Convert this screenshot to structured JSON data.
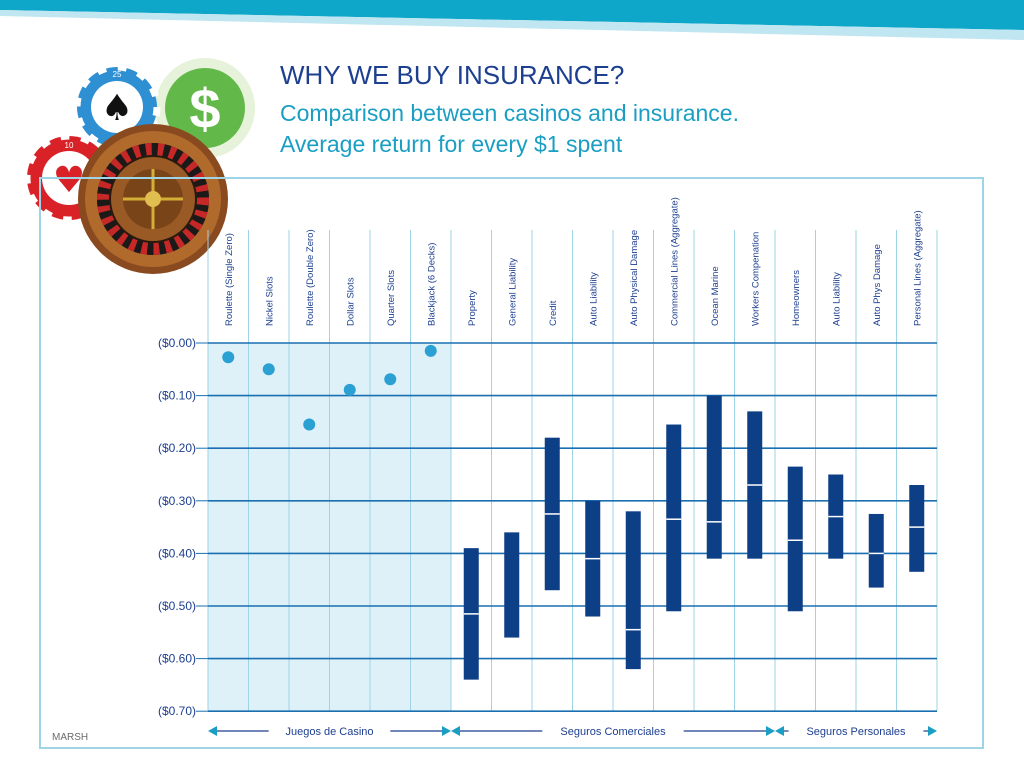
{
  "header": {
    "title": "WHY WE BUY INSURANCE?",
    "subtitle_line1": "Comparison between casinos and insurance.",
    "subtitle_line2": "Average return for every $1 spent"
  },
  "footer": {
    "brand": "MARSH"
  },
  "colors": {
    "accent": "#1a9ec3",
    "title": "#1d3f8f",
    "bar": "#0d3f86",
    "dot": "#2ba0d2",
    "grid": "#1a6fb0",
    "casino_shade": "#dff1f8",
    "frame": "#9fd3e6"
  },
  "decor": {
    "dollar": "$",
    "chip_blue_value": "25",
    "chip_red_value": "10"
  },
  "chart_data": {
    "type": "scatter",
    "title": "",
    "xlabel": "",
    "ylabel": "",
    "y_tick_labels": [
      "($0.00)",
      "($0.10)",
      "($0.20)",
      "($0.30)",
      "($0.40)",
      "($0.50)",
      "($0.60)",
      "($0.70)"
    ],
    "y_ticks": [
      0,
      -0.1,
      -0.2,
      -0.3,
      -0.4,
      -0.5,
      -0.6,
      -0.7
    ],
    "ylim": [
      -0.7,
      0
    ],
    "grid": true,
    "categories": [
      "Roulette (Single Zero)",
      "Nickel Slots",
      "Roulette (Double Zero)",
      "Dollar Slots",
      "Quarter Slots",
      "Blackjack (6 Decks)",
      "Property",
      "General Liability",
      "Credit",
      "Auto Liability",
      "Auto Physical Damage",
      "Commercial Lines (Aggregate)",
      "Ocean Marine",
      "Workers Compenation",
      "Homeowners",
      "Auto Liability",
      "Auto Phys Damage",
      "Personal Lines (Aggregate)"
    ],
    "casino_points": [
      -0.027,
      -0.05,
      -0.155,
      -0.089,
      -0.069,
      -0.015
    ],
    "insurance_ranges": [
      {
        "low": -0.64,
        "high": -0.39,
        "mid": -0.515
      },
      {
        "low": -0.56,
        "high": -0.36,
        "mid": null
      },
      {
        "low": -0.47,
        "high": -0.18,
        "mid": -0.325
      },
      {
        "low": -0.52,
        "high": -0.3,
        "mid": -0.41
      },
      {
        "low": -0.62,
        "high": -0.32,
        "mid": -0.545
      },
      {
        "low": -0.51,
        "high": -0.155,
        "mid": -0.335
      },
      {
        "low": -0.41,
        "high": -0.1,
        "mid": -0.34
      },
      {
        "low": -0.41,
        "high": -0.13,
        "mid": -0.27
      },
      {
        "low": -0.51,
        "high": -0.235,
        "mid": -0.375
      },
      {
        "low": -0.41,
        "high": -0.25,
        "mid": -0.33
      },
      {
        "low": -0.465,
        "high": -0.325,
        "mid": -0.4
      },
      {
        "low": -0.435,
        "high": -0.27,
        "mid": -0.35
      }
    ],
    "groups": [
      {
        "label": "Juegos de Casino",
        "from": 0,
        "to": 5
      },
      {
        "label": "Seguros Comerciales",
        "from": 6,
        "to": 13
      },
      {
        "label": "Seguros Personales",
        "from": 14,
        "to": 17
      }
    ]
  }
}
